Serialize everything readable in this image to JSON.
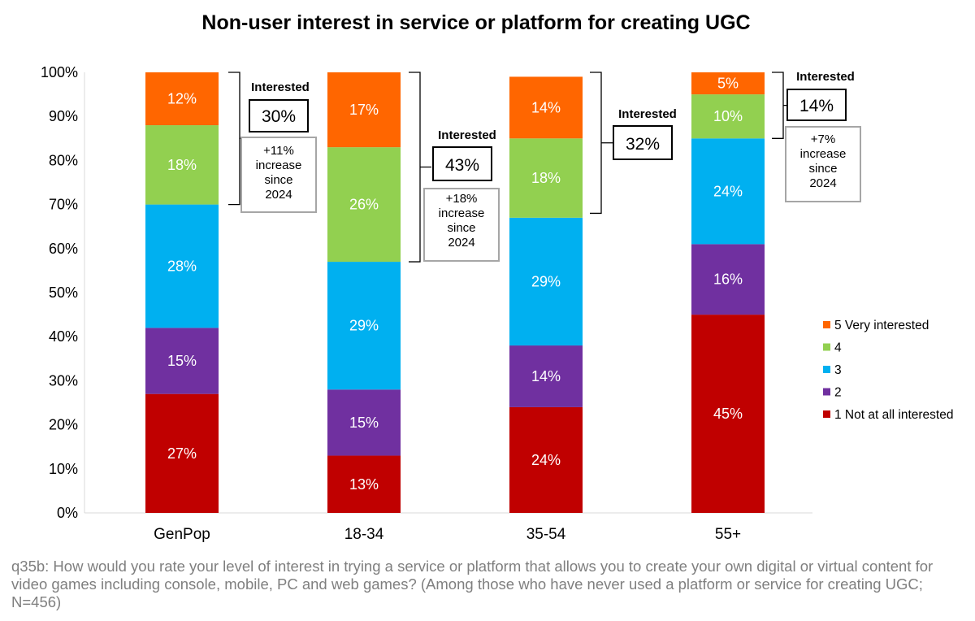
{
  "chart_data": {
    "type": "bar",
    "stacked": true,
    "percent": true,
    "title": "Non-user interest in service or platform for creating UGC",
    "categories": [
      "GenPop",
      "18-34",
      "35-54",
      "55+"
    ],
    "ylim": [
      0,
      100
    ],
    "y_ticks": [
      "0%",
      "10%",
      "20%",
      "30%",
      "40%",
      "50%",
      "60%",
      "70%",
      "80%",
      "90%",
      "100%"
    ],
    "series": [
      {
        "name": "1 Not at all interested",
        "color": "#c00000",
        "values": [
          27,
          13,
          24,
          45
        ],
        "labels": [
          "27%",
          "13%",
          "24%",
          "45%"
        ]
      },
      {
        "name": "2",
        "color": "#7030a0",
        "values": [
          15,
          15,
          14,
          16
        ],
        "labels": [
          "15%",
          "15%",
          "14%",
          "16%"
        ]
      },
      {
        "name": "3",
        "color": "#00b0f0",
        "values": [
          28,
          29,
          29,
          24
        ],
        "labels": [
          "28%",
          "29%",
          "29%",
          "24%"
        ]
      },
      {
        "name": "4",
        "color": "#92d050",
        "values": [
          18,
          26,
          18,
          10
        ],
        "labels": [
          "18%",
          "26%",
          "18%",
          "10%"
        ]
      },
      {
        "name": "5 Very interested",
        "color": "#ff6600",
        "values": [
          12,
          17,
          14,
          5
        ],
        "labels": [
          "12%",
          "17%",
          "14%",
          "5%"
        ]
      }
    ],
    "annotations": [
      {
        "category": "GenPop",
        "title": "Interested",
        "value": "30%",
        "increase": [
          "+11%",
          "increase",
          "since",
          "2024"
        ]
      },
      {
        "category": "18-34",
        "title": "Interested",
        "value": "43%",
        "increase": [
          "+18%",
          "increase",
          "since",
          "2024"
        ]
      },
      {
        "category": "35-54",
        "title": "Interested",
        "value": "32%",
        "increase": []
      },
      {
        "category": "55+",
        "title": "Interested",
        "value": "14%",
        "increase": [
          "+7%",
          "increase",
          "since",
          "2024"
        ]
      }
    ],
    "legend_position": "right"
  },
  "footnote": "q35b: How would you rate your level of interest in trying a service or platform that allows you to create your own digital or virtual content for video games including console, mobile, PC and web games? (Among those who have never used a platform or service for creating UGC; N=456)"
}
